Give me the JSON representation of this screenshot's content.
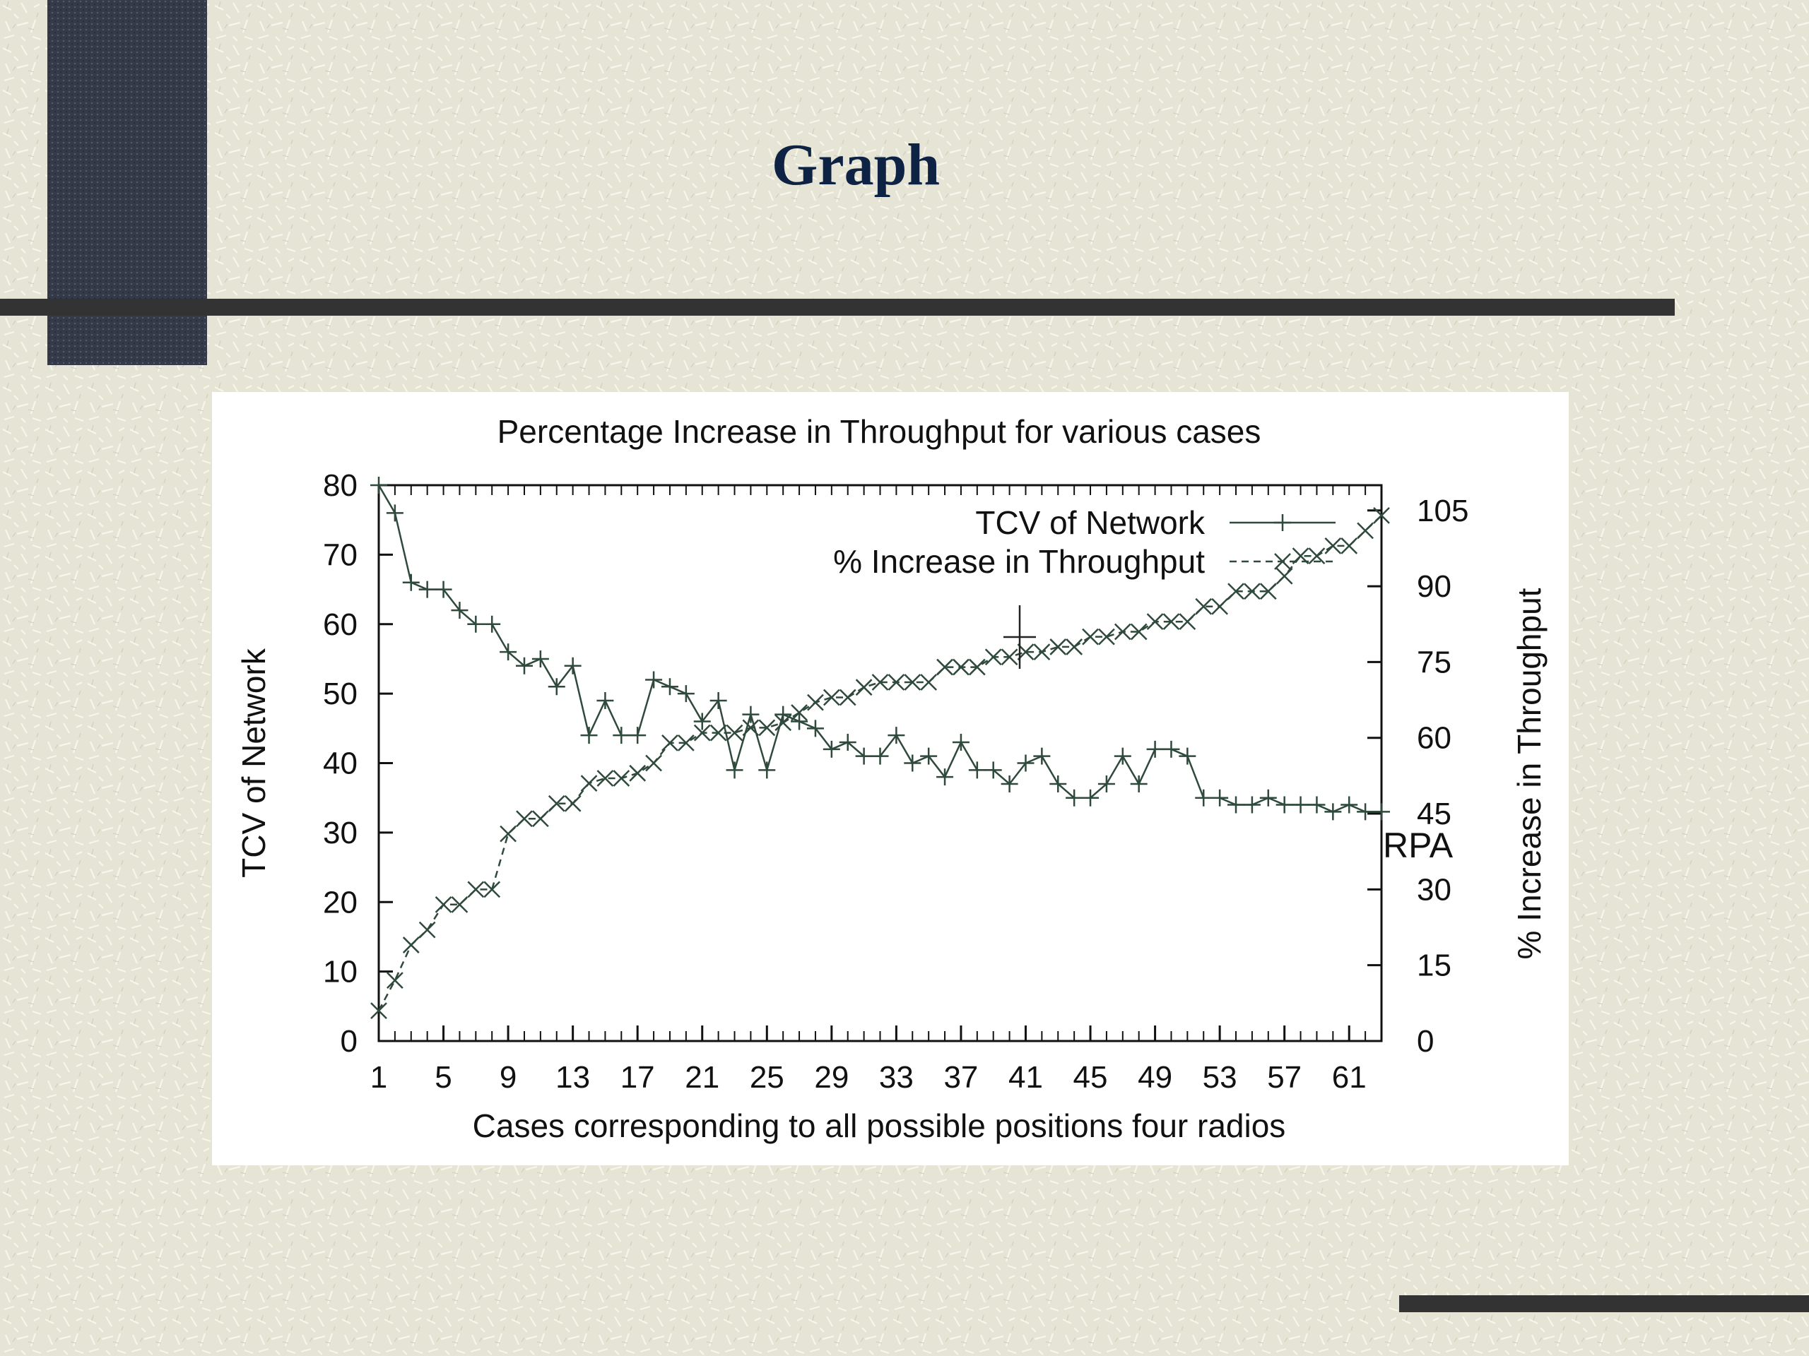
{
  "slide": {
    "title": "Graph",
    "colors": {
      "background": "#e6e4d4",
      "texture": "#f7f6ec",
      "dark_block": "#343a48",
      "bar": "#333333",
      "title": "#0e2344",
      "plot_line": "#2f4a3c"
    }
  },
  "chart_data": {
    "type": "line",
    "title": "Percentage Increase in Throughput for various cases",
    "xlabel": "Cases corresponding to all possible positions four radios",
    "ylabel_left": "TCV of Network",
    "ylabel_right": "% Increase in Throughput",
    "xlim": [
      1,
      63
    ],
    "ylim_left": [
      0,
      80
    ],
    "ylim_right": [
      0,
      110
    ],
    "x_ticks": [
      1,
      5,
      9,
      13,
      17,
      21,
      25,
      29,
      33,
      37,
      41,
      45,
      49,
      53,
      57,
      61
    ],
    "y_ticks_left": [
      0,
      10,
      20,
      30,
      40,
      50,
      60,
      70,
      80
    ],
    "y_ticks_right": [
      0,
      15,
      30,
      45,
      60,
      75,
      90,
      105
    ],
    "legend_position": "top-right",
    "annotation": "RPA",
    "grid": false,
    "series": [
      {
        "name": "TCV of Network",
        "axis": "left",
        "marker": "plus",
        "line": "solid",
        "x": [
          1,
          2,
          3,
          4,
          5,
          6,
          7,
          8,
          9,
          10,
          11,
          12,
          13,
          14,
          15,
          16,
          17,
          18,
          19,
          20,
          21,
          22,
          23,
          24,
          25,
          26,
          27,
          28,
          29,
          30,
          31,
          32,
          33,
          34,
          35,
          36,
          37,
          38,
          39,
          40,
          41,
          42,
          43,
          44,
          45,
          46,
          47,
          48,
          49,
          50,
          51,
          52,
          53,
          54,
          55,
          56,
          57,
          58,
          59,
          60,
          61,
          62,
          63
        ],
        "values": [
          80,
          76,
          66,
          65,
          65,
          62,
          60,
          60,
          56,
          54,
          55,
          51,
          54,
          44,
          49,
          44,
          44,
          52,
          51,
          50,
          46,
          49,
          39,
          47,
          39,
          47,
          46,
          45,
          42,
          43,
          41,
          41,
          44,
          40,
          41,
          38,
          43,
          39,
          39,
          37,
          40,
          41,
          37,
          35,
          35,
          37,
          41,
          37,
          42,
          42,
          41,
          35,
          35,
          34,
          34,
          35,
          34,
          34,
          34,
          33,
          34,
          33,
          33
        ]
      },
      {
        "name": "% Increase in Throughput",
        "axis": "right",
        "marker": "x",
        "line": "dashed",
        "x": [
          1,
          2,
          3,
          4,
          5,
          6,
          7,
          8,
          9,
          10,
          11,
          12,
          13,
          14,
          15,
          16,
          17,
          18,
          19,
          20,
          21,
          22,
          23,
          24,
          25,
          26,
          27,
          28,
          29,
          30,
          31,
          32,
          33,
          34,
          35,
          36,
          37,
          38,
          39,
          40,
          41,
          42,
          43,
          44,
          45,
          46,
          47,
          48,
          49,
          50,
          51,
          52,
          53,
          54,
          55,
          56,
          57,
          58,
          59,
          60,
          61,
          62,
          63
        ],
        "values": [
          6,
          12,
          19,
          22,
          27,
          27,
          30,
          30,
          41,
          44,
          44,
          47,
          47,
          51,
          52,
          52,
          53,
          55,
          59,
          59,
          61,
          61,
          61,
          62,
          62,
          63,
          65,
          67,
          68,
          68,
          70,
          71,
          71,
          71,
          71,
          74,
          74,
          74,
          76,
          76,
          77,
          77,
          78,
          78,
          80,
          80,
          81,
          81,
          83,
          83,
          83,
          86,
          86,
          89,
          89,
          89,
          92,
          96,
          96,
          98,
          98,
          101,
          104
        ]
      }
    ]
  }
}
